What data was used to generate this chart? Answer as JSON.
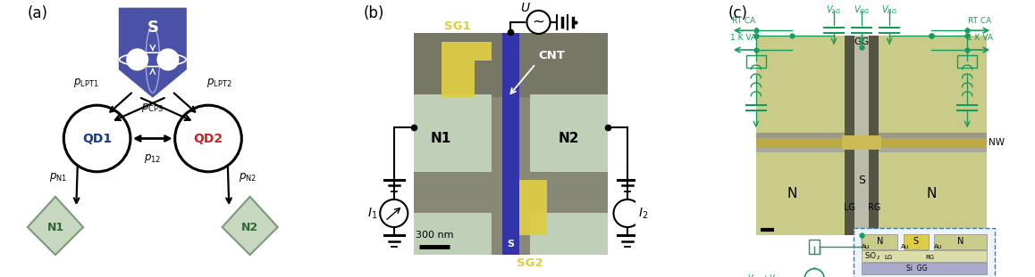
{
  "bg_color": "#ffffff",
  "panel_a": {
    "shield_color": "#4a52a8",
    "qd1_text_color": "#1a3a8a",
    "qd2_text_color": "#cc2222",
    "n_fill": "#c8d8c0",
    "n_edge": "#7a9a7a",
    "arrow_color": "#000000"
  },
  "panel_b": {
    "sem_bg": "#888877",
    "n_electrode": "#c0d0b8",
    "cnt_color": "#3333aa",
    "sg_color": "#ddcc44",
    "circuit_color": "#000000",
    "labels": {
      "SG1": "SG1",
      "SG2": "SG2",
      "CNT": "CNT",
      "N1": "N1",
      "N2": "N2",
      "S": "S",
      "scale": "300 nm",
      "U": "U"
    }
  },
  "panel_c": {
    "gc": "#1a9a5a",
    "sem_bg": "#999988",
    "electrode_color": "#c8cc88",
    "nw_color": "#ddcc44",
    "gap_color": "#777766",
    "s_color": "#bbbbaa"
  },
  "figsize": [
    11.58,
    3.11
  ],
  "dpi": 100
}
